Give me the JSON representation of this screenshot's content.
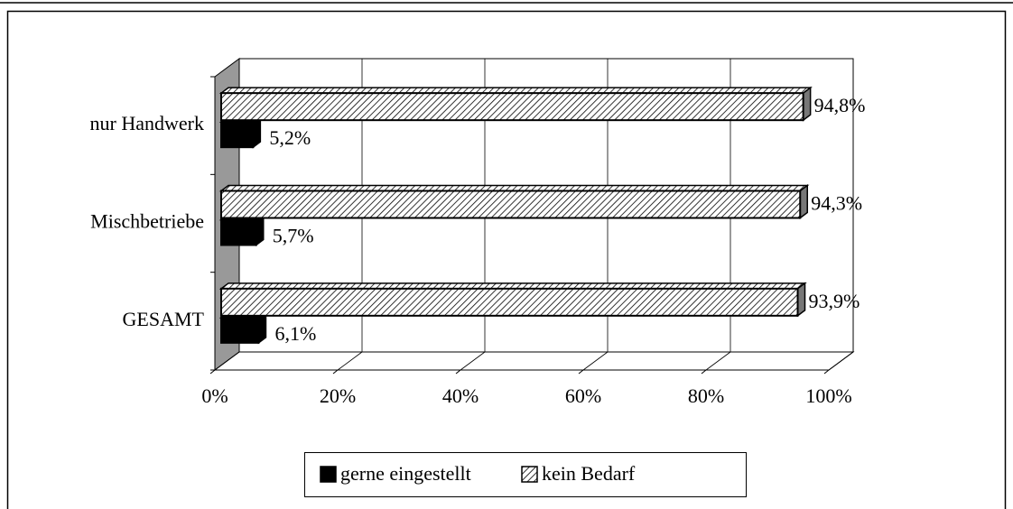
{
  "chart_data": {
    "type": "bar3d_horizontal",
    "categories": [
      "nur Handwerk",
      "Mischbetriebe",
      "GESAMT"
    ],
    "series": [
      {
        "name": "gerne eingestellt",
        "color": "#000000",
        "values": [
          5.2,
          5.7,
          6.1
        ],
        "value_labels": [
          "5,2%",
          "5,7%",
          "6,1%"
        ]
      },
      {
        "name": "kein Bedarf",
        "color": "#000000",
        "hatch": true,
        "values": [
          94.8,
          94.3,
          93.9
        ],
        "value_labels": [
          "94,8%",
          "94,3%",
          "93,9%"
        ]
      }
    ],
    "xlim": [
      0,
      100
    ],
    "xticks": [
      {
        "value": 0,
        "label": "0%"
      },
      {
        "value": 20,
        "label": "20%"
      },
      {
        "value": 40,
        "label": "40%"
      },
      {
        "value": 60,
        "label": "60%"
      },
      {
        "value": 80,
        "label": "80%"
      },
      {
        "value": 100,
        "label": "100%"
      }
    ],
    "grid": true,
    "legend": "bottom"
  }
}
